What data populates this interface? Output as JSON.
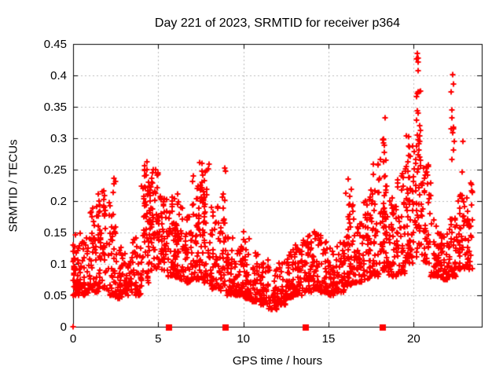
{
  "chart_data": {
    "type": "scatter",
    "title": "Day 221 of 2023, SRMTID for receiver p364",
    "xlabel": "GPS time / hours",
    "ylabel": "SRMTID / TECUs",
    "xlim": [
      0,
      24
    ],
    "ylim": [
      0,
      0.45
    ],
    "xticks": {
      "values": [
        0,
        5,
        10,
        15,
        20
      ],
      "labels": [
        "0",
        "5",
        "10",
        "15",
        "20"
      ]
    },
    "yticks": {
      "values": [
        0,
        0.05,
        0.1,
        0.15,
        0.2,
        0.25,
        0.3,
        0.35,
        0.4,
        0.45
      ],
      "labels": [
        "0",
        "0.05",
        "0.1",
        "0.15",
        "0.2",
        "0.25",
        "0.3",
        "0.35",
        "0.4",
        "0.45"
      ]
    },
    "grid": {
      "show": true,
      "style": "dashed",
      "color": "#bbbbbb"
    },
    "background": "#ffffff",
    "axis_color": "#000000",
    "legend": null,
    "series": [
      {
        "name": "srmtid",
        "marker": "plus",
        "color": "#ff0000",
        "cloud_bins_format": "[xStart, xEnd, yMin, yMax, count, lowSkewExponent] — envelope of dense point cloud read from plot",
        "cloud_bins": [
          [
            0.0,
            0.5,
            0.05,
            0.16,
            45,
            2.0
          ],
          [
            0.5,
            1.0,
            0.05,
            0.145,
            40,
            2.0
          ],
          [
            1.0,
            1.5,
            0.055,
            0.2,
            45,
            1.8
          ],
          [
            1.5,
            2.0,
            0.06,
            0.22,
            45,
            1.8
          ],
          [
            2.0,
            2.5,
            0.05,
            0.2,
            40,
            2.0
          ],
          [
            2.5,
            3.0,
            0.045,
            0.13,
            40,
            2.0
          ],
          [
            3.0,
            3.5,
            0.05,
            0.125,
            40,
            2.0
          ],
          [
            3.5,
            4.0,
            0.05,
            0.16,
            40,
            2.0
          ],
          [
            4.0,
            4.5,
            0.07,
            0.26,
            50,
            1.4
          ],
          [
            4.5,
            5.0,
            0.09,
            0.25,
            55,
            1.2
          ],
          [
            5.0,
            5.5,
            0.09,
            0.22,
            50,
            1.3
          ],
          [
            5.5,
            6.0,
            0.08,
            0.21,
            45,
            1.4
          ],
          [
            6.0,
            6.5,
            0.075,
            0.19,
            45,
            1.5
          ],
          [
            6.5,
            7.0,
            0.07,
            0.18,
            40,
            1.6
          ],
          [
            7.0,
            7.5,
            0.075,
            0.24,
            45,
            1.6
          ],
          [
            7.5,
            8.0,
            0.07,
            0.26,
            50,
            1.6
          ],
          [
            8.0,
            8.5,
            0.06,
            0.2,
            45,
            1.8
          ],
          [
            8.5,
            9.0,
            0.055,
            0.17,
            40,
            1.8
          ],
          [
            9.0,
            9.5,
            0.05,
            0.15,
            45,
            2.0
          ],
          [
            9.5,
            10.0,
            0.05,
            0.13,
            40,
            2.0
          ],
          [
            10.0,
            10.5,
            0.045,
            0.155,
            45,
            2.0
          ],
          [
            10.5,
            11.0,
            0.04,
            0.12,
            40,
            2.0
          ],
          [
            11.0,
            11.5,
            0.035,
            0.11,
            40,
            2.0
          ],
          [
            11.5,
            12.0,
            0.027,
            0.095,
            40,
            2.0
          ],
          [
            12.0,
            12.5,
            0.035,
            0.11,
            40,
            2.0
          ],
          [
            12.5,
            13.0,
            0.045,
            0.125,
            45,
            2.0
          ],
          [
            13.0,
            13.5,
            0.05,
            0.135,
            45,
            1.8
          ],
          [
            13.5,
            14.0,
            0.055,
            0.15,
            45,
            1.8
          ],
          [
            14.0,
            14.5,
            0.06,
            0.155,
            45,
            1.8
          ],
          [
            14.5,
            15.0,
            0.055,
            0.145,
            40,
            1.8
          ],
          [
            15.0,
            15.5,
            0.05,
            0.13,
            40,
            2.0
          ],
          [
            15.5,
            16.0,
            0.055,
            0.15,
            45,
            2.0
          ],
          [
            16.0,
            16.5,
            0.065,
            0.22,
            45,
            1.8
          ],
          [
            16.5,
            17.0,
            0.07,
            0.17,
            40,
            1.8
          ],
          [
            17.0,
            17.5,
            0.075,
            0.21,
            45,
            1.8
          ],
          [
            17.5,
            18.0,
            0.08,
            0.26,
            45,
            1.8
          ],
          [
            18.0,
            18.5,
            0.09,
            0.3,
            50,
            1.8
          ],
          [
            18.5,
            19.0,
            0.08,
            0.21,
            45,
            1.8
          ],
          [
            19.0,
            19.5,
            0.085,
            0.25,
            45,
            1.6
          ],
          [
            19.5,
            20.0,
            0.1,
            0.29,
            50,
            1.5
          ],
          [
            20.0,
            20.5,
            0.11,
            0.3,
            45,
            1.3
          ],
          [
            20.5,
            21.0,
            0.1,
            0.26,
            45,
            1.5
          ],
          [
            21.0,
            21.5,
            0.08,
            0.17,
            40,
            1.8
          ],
          [
            21.5,
            22.0,
            0.075,
            0.155,
            40,
            1.8
          ],
          [
            22.0,
            22.5,
            0.08,
            0.18,
            40,
            1.8
          ],
          [
            22.5,
            23.0,
            0.09,
            0.22,
            40,
            1.8
          ],
          [
            23.0,
            23.45,
            0.09,
            0.24,
            35,
            1.6
          ]
        ],
        "spike_columns_format": "[xCenter, yMin, yMax, count, xHalfJitter] — tall narrow vertical clusters",
        "spike_columns": [
          [
            0.03,
            0.05,
            0.135,
            14,
            0.06
          ],
          [
            1.55,
            0.12,
            0.22,
            8,
            0.15
          ],
          [
            2.38,
            0.14,
            0.235,
            8,
            0.12
          ],
          [
            4.32,
            0.17,
            0.265,
            10,
            0.12
          ],
          [
            6.1,
            0.14,
            0.23,
            7,
            0.1
          ],
          [
            7.45,
            0.15,
            0.262,
            10,
            0.12
          ],
          [
            8.85,
            0.15,
            0.26,
            9,
            0.1
          ],
          [
            16.2,
            0.14,
            0.25,
            7,
            0.1
          ],
          [
            18.3,
            0.15,
            0.335,
            12,
            0.1
          ],
          [
            19.68,
            0.2,
            0.305,
            8,
            0.12
          ],
          [
            20.22,
            0.3,
            0.437,
            10,
            0.08
          ],
          [
            20.33,
            0.25,
            0.41,
            7,
            0.08
          ],
          [
            22.3,
            0.25,
            0.402,
            9,
            0.08
          ],
          [
            22.85,
            0.12,
            0.3,
            6,
            0.1
          ]
        ],
        "peak_points": [
          [
            20.22,
            0.435
          ],
          [
            20.25,
            0.421
          ],
          [
            20.28,
            0.408
          ],
          [
            22.3,
            0.401
          ],
          [
            22.33,
            0.386
          ],
          [
            22.32,
            0.318
          ],
          [
            18.3,
            0.332
          ],
          [
            19.7,
            0.302
          ],
          [
            4.32,
            0.262
          ],
          [
            7.45,
            0.261
          ],
          [
            2.38,
            0.236
          ]
        ]
      },
      {
        "name": "zero-flags",
        "marker": "filled-square",
        "color": "#ff0000",
        "points": [
          [
            5.61,
            0
          ],
          [
            8.95,
            0
          ],
          [
            13.65,
            0
          ],
          [
            18.18,
            0
          ]
        ]
      },
      {
        "name": "origin-point",
        "marker": "plus",
        "color": "#ff0000",
        "points": [
          [
            0,
            0
          ]
        ]
      }
    ]
  }
}
